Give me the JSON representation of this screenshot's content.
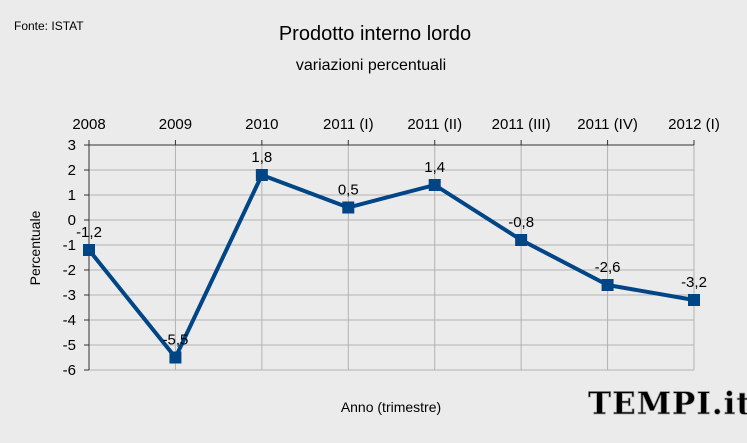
{
  "source": "Fonte: ISTAT",
  "watermark": "TEMPI.it",
  "colors": {
    "background": "#ebebeb",
    "plot_area": "#ebebeb",
    "gridline": "#b3b3b3",
    "axis": "#333333",
    "series": "#004586",
    "watermark": "#d0d0d0"
  },
  "chart_data": {
    "type": "line",
    "title": "Prodotto interno lordo",
    "subtitle": "variazioni percentuali",
    "xlabel": "Anno (trimestre)",
    "ylabel": "Percentuale",
    "categories": [
      "2008",
      "2009",
      "2010",
      "2011 (I)",
      "2011 (II)",
      "2011 (III)",
      "2011 (IV)",
      "2012 (I)"
    ],
    "series": [
      {
        "values": [
          -1.2,
          -5.5,
          1.8,
          0.5,
          1.4,
          -0.8,
          -2.6,
          -3.2
        ],
        "data_labels": [
          "-1,2",
          "-5,5",
          "1,8",
          "0,5",
          "1,4",
          "-0,8",
          "-2,6",
          "-3,2"
        ],
        "marker": "square"
      }
    ],
    "ylim": [
      -6,
      3
    ],
    "yticks": [
      3,
      2,
      1,
      0,
      -1,
      -2,
      -3,
      -4,
      -5,
      -6
    ],
    "ytick_labels": [
      "3",
      "2",
      "1",
      "0",
      "-1",
      "-2",
      "-3",
      "-4",
      "-5",
      "-6"
    ],
    "x_axis_position": "top",
    "grid": {
      "horizontal": true,
      "vertical": true
    },
    "legend": "none"
  }
}
